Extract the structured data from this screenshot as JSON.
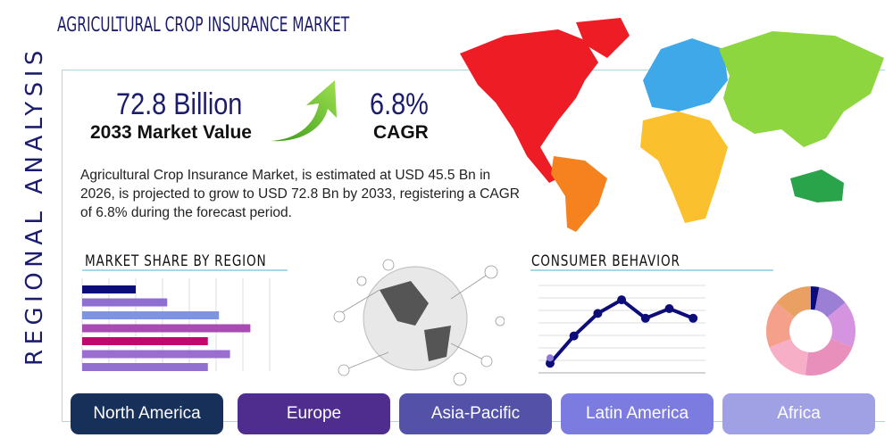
{
  "title": "AGRICULTURAL CROP INSURANCE MARKET",
  "side_label": "REGIONAL ANALYSIS",
  "market_value": {
    "value": "72.8 Billion",
    "label": "2033 Market Value"
  },
  "cagr": {
    "value": "6.8%",
    "label": "CAGR"
  },
  "description": "Agricultural Crop Insurance Market, is estimated at USD 45.5 Bn in 2026, is projected to grow to USD 72.8 Bn by 2033, registering a CAGR of 6.8% during the forecast period.",
  "market_share": {
    "heading": "MARKET SHARE BY REGION",
    "relative_bars": [
      0.29,
      0.46,
      0.74,
      0.91,
      0.68,
      0.8,
      0.68
    ],
    "colors": [
      "#0d0d7a",
      "#8e6ed0",
      "#7e94de",
      "#a84cb4",
      "#c2076e",
      "#9a6ed0",
      "#9170d0"
    ]
  },
  "consumer_behavior": {
    "heading": "CONSUMER BEHAVIOR",
    "relative_line": [
      0.12,
      0.46,
      0.74,
      0.91,
      0.68,
      0.8,
      0.68
    ],
    "line_color": "#0d0d7a",
    "donut_shares": [
      3,
      11,
      17,
      21,
      17,
      17,
      14
    ],
    "donut_colors": [
      "#0d0d7a",
      "#9b7fd4",
      "#d494e0",
      "#e88fbc",
      "#f6afc6",
      "#f5a08a",
      "#e9a062"
    ]
  },
  "regions": [
    {
      "label": "North America",
      "color": "#17305a"
    },
    {
      "label": "Europe",
      "color": "#4e2d8f"
    },
    {
      "label": "Asia-Pacific",
      "color": "#5352a8"
    },
    {
      "label": "Latin America",
      "color": "#7b7be0"
    },
    {
      "label": "Africa",
      "color": "#a0a0e4"
    }
  ],
  "map_colors": {
    "north_america": "#ee1c25",
    "south_america": "#f5821f",
    "europe": "#3fa8e8",
    "africa": "#fbc02d",
    "asia": "#8dd63f",
    "oceania": "#2aa44a",
    "greenland": "#ee1c25"
  }
}
